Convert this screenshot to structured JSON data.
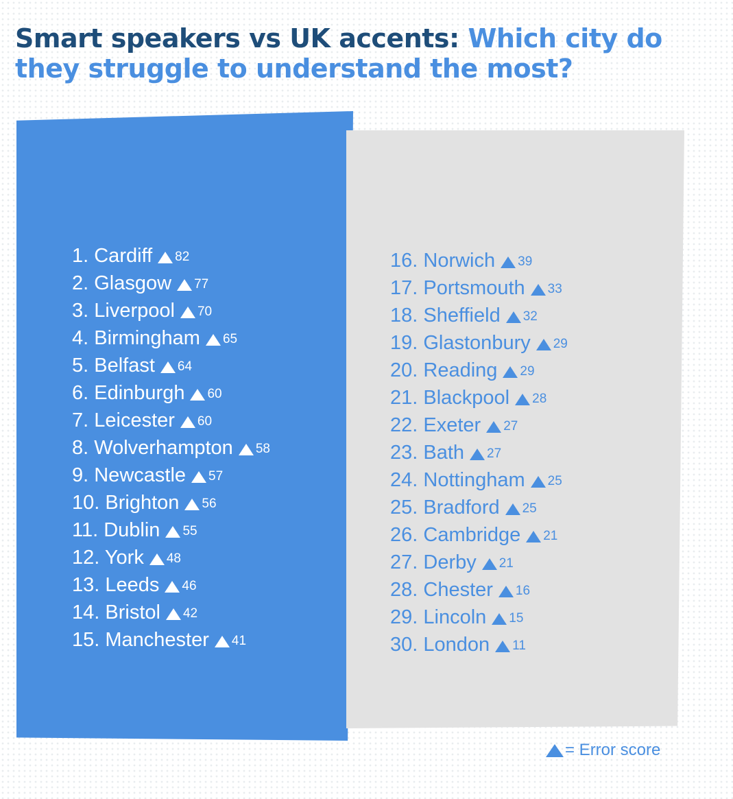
{
  "title": {
    "part1": "Smart speakers vs UK accents: ",
    "part2": "Which city do they struggle to understand the most?"
  },
  "colors": {
    "dark_blue": "#1e4d79",
    "accent_blue": "#4a8fe0",
    "panel_grey": "#e2e2e2"
  },
  "icon": "triangle-up-icon",
  "left_list": [
    {
      "label": "1. Cardiff",
      "score": "82"
    },
    {
      "label": "2. Glasgow",
      "score": "77"
    },
    {
      "label": "3. Liverpool",
      "score": "70"
    },
    {
      "label": "4. Birmingham",
      "score": "65"
    },
    {
      "label": "5. Belfast",
      "score": "64"
    },
    {
      "label": "6. Edinburgh",
      "score": "60"
    },
    {
      "label": "7. Leicester",
      "score": "60"
    },
    {
      "label": "8. Wolverhampton",
      "score": "58"
    },
    {
      "label": "9.  Newcastle",
      "score": "57"
    },
    {
      "label": "10. Brighton",
      "score": "56"
    },
    {
      "label": "11. Dublin",
      "score": "55"
    },
    {
      "label": "12. York",
      "score": "48"
    },
    {
      "label": "13. Leeds",
      "score": "46"
    },
    {
      "label": "14. Bristol",
      "score": "42"
    },
    {
      "label": "15. Manchester",
      "score": "41"
    }
  ],
  "right_list": [
    {
      "label": "16. Norwich",
      "score": "39"
    },
    {
      "label": "17. Portsmouth",
      "score": "33"
    },
    {
      "label": "18. Sheffield",
      "score": "32"
    },
    {
      "label": "19. Glastonbury",
      "score": "29"
    },
    {
      "label": "20. Reading",
      "score": "29"
    },
    {
      "label": "21. Blackpool",
      "score": "28"
    },
    {
      "label": "22. Exeter",
      "score": "27"
    },
    {
      "label": "23. Bath",
      "score": "27"
    },
    {
      "label": "24. Nottingham",
      "score": "25"
    },
    {
      "label": "25. Bradford",
      "score": "25"
    },
    {
      "label": "26. Cambridge",
      "score": "21"
    },
    {
      "label": "27. Derby",
      "score": "21"
    },
    {
      "label": "28. Chester",
      "score": "16"
    },
    {
      "label": "29. Lincoln",
      "score": "15"
    },
    {
      "label": "30. London",
      "score": "11"
    }
  ],
  "legend": {
    "text": "= Error score"
  }
}
